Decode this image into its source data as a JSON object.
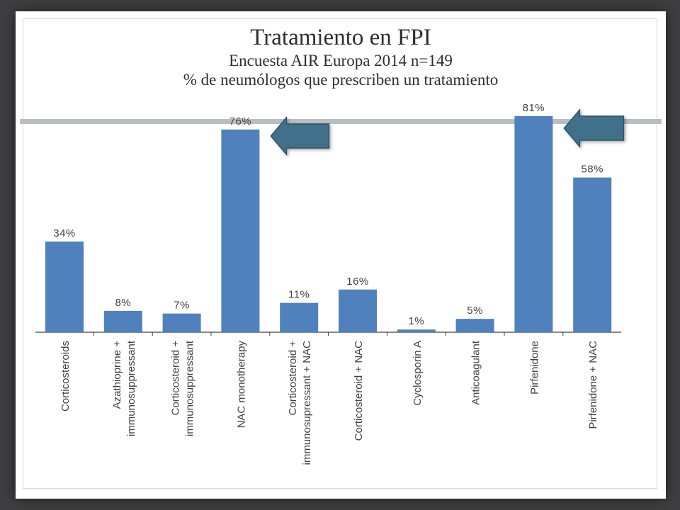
{
  "header": {
    "title": "Tratamiento en FPI",
    "subtitle_1": "Encuesta AIR Europa 2014 n=149",
    "subtitle_2": "% de neumólogos que prescriben un tratamiento"
  },
  "colors": {
    "bar": "#4f81bd",
    "arrow": "#41708a",
    "axis": "#404040",
    "label": "#404040"
  },
  "chart_data": {
    "type": "bar",
    "title": "Tratamiento en FPI",
    "xlabel": "",
    "ylabel": "",
    "unit": "%",
    "ylim": [
      0,
      81
    ],
    "grid": false,
    "legend": "none",
    "categories": [
      [
        "Corticosteroids"
      ],
      [
        "Azathioprine +",
        "immunosuppressant"
      ],
      [
        "Corticosteroid +",
        "immunosuppressant"
      ],
      [
        "NAC monotherapy"
      ],
      [
        "Corticosteroid +",
        "immunosupressant + NAC"
      ],
      [
        "Corticosteroid + NAC"
      ],
      [
        "Cyclosporin A"
      ],
      [
        "Anticoagulant"
      ],
      [
        "Pirfenidone"
      ],
      [
        "Pirfenidone + NAC"
      ]
    ],
    "values": [
      34,
      8,
      7,
      76,
      11,
      16,
      1,
      5,
      81,
      58
    ],
    "value_labels": [
      "34%",
      "8%",
      "7%",
      "76%",
      "11%",
      "16%",
      "1%",
      "5%",
      "81%",
      "58%"
    ],
    "highlight_arrows": [
      "NAC monotherapy",
      "Pirfenidone"
    ]
  }
}
